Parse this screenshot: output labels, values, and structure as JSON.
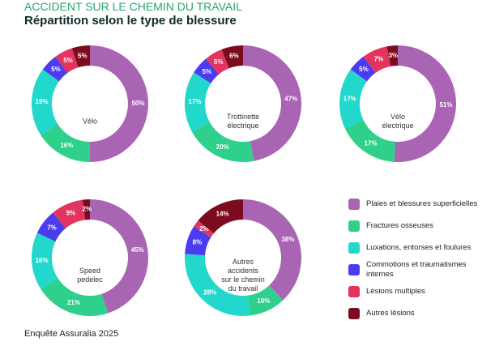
{
  "header": {
    "kicker": "ACCIDENT SUR LE CHEMIN DU TRAVAIL",
    "title": "Répartition selon le type de blessure"
  },
  "legend": {
    "categories": [
      "Plaies et blessures superficielles",
      "Fractures osseuses",
      "Luxations, entorses et foulures",
      "Commotions et traumatismes internes",
      "Lésions multiples",
      "Autres lésions"
    ],
    "colors": [
      "#a964b3",
      "#2fd08c",
      "#22d8cc",
      "#4b3cf0",
      "#e2345f",
      "#7c0b1f"
    ]
  },
  "chart_data": [
    {
      "type": "donut",
      "title": [
        "Vélo"
      ],
      "values": [
        50,
        16,
        19,
        5,
        5,
        5
      ],
      "value_labels": [
        "50%",
        "16%",
        "19%",
        "5%",
        "5%",
        "5%"
      ]
    },
    {
      "type": "donut",
      "title": [
        "Trottinette",
        "électrique"
      ],
      "values": [
        47,
        20,
        17,
        5,
        5,
        6
      ],
      "value_labels": [
        "47%",
        "20%",
        "17%",
        "5%",
        "5%",
        "6%"
      ]
    },
    {
      "type": "donut",
      "title": [
        "Vélo",
        "électrique"
      ],
      "values": [
        51,
        17,
        17,
        5,
        7,
        3
      ],
      "value_labels": [
        "51%",
        "17%",
        "17%",
        "5%",
        "7%",
        "3%"
      ]
    },
    {
      "type": "donut",
      "title": [
        "Speed",
        "pedelec"
      ],
      "values": [
        45,
        21,
        16,
        7,
        9,
        2
      ],
      "value_labels": [
        "45%",
        "21%",
        "16%",
        "7%",
        "9%",
        "2%"
      ]
    },
    {
      "type": "donut",
      "title": [
        "Autres",
        "accidents",
        "sur le chemin",
        "du travail"
      ],
      "values": [
        38,
        10,
        28,
        8,
        2,
        14
      ],
      "value_labels": [
        "38%",
        "10%",
        "28%",
        "8%",
        "2%",
        "14%"
      ]
    }
  ],
  "source": "Enquête Assuralia 2025"
}
